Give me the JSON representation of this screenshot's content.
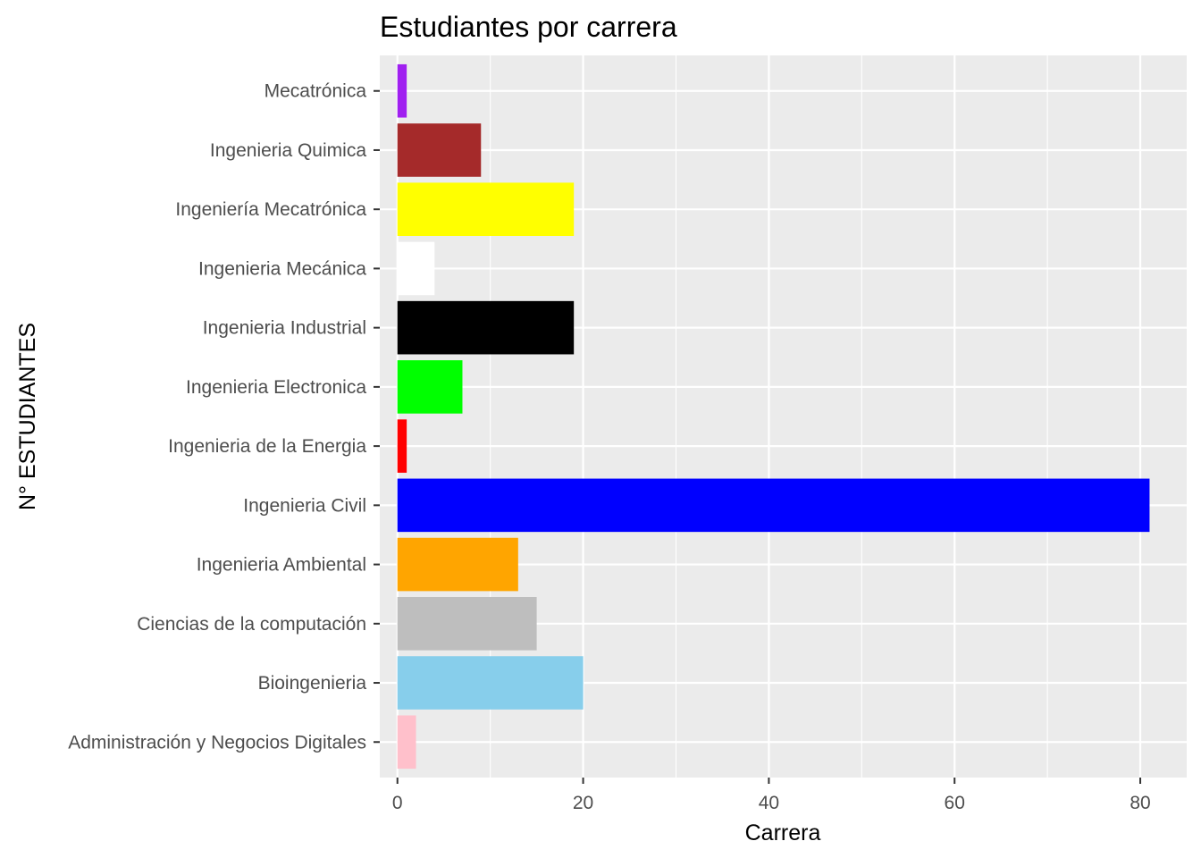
{
  "chart_data": {
    "type": "bar",
    "orientation": "horizontal",
    "title": "Estudiantes por carrera",
    "xlabel": "Carrera",
    "ylabel": "N° ESTUDIANTES",
    "xlim": [
      -1.9,
      85
    ],
    "x_ticks": [
      0,
      20,
      40,
      60,
      80
    ],
    "grid": true,
    "legend": "none",
    "categories": [
      "Administración y Negocios Digitales",
      "Bioingenieria",
      "Ciencias de la computación",
      "Ingenieria Ambiental",
      "Ingenieria Civil",
      "Ingenieria de la Energia",
      "Ingenieria Electronica",
      "Ingenieria Industrial",
      "Ingenieria Mecánica",
      "Ingeniería Mecatrónica",
      "Ingenieria Quimica",
      "Mecatrónica"
    ],
    "values": [
      2,
      20,
      15,
      13,
      81,
      1,
      7,
      19,
      4,
      19,
      9,
      1
    ],
    "colors": [
      "#ffc0cb",
      "#87ceeb",
      "#bebebe",
      "#ffa500",
      "#0000ff",
      "#ff0000",
      "#00ff00",
      "#000000",
      "#ffffff",
      "#ffff00",
      "#a52a2a",
      "#a020f0"
    ],
    "panel_background": "#ebebeb",
    "grid_color": "#ffffff"
  }
}
